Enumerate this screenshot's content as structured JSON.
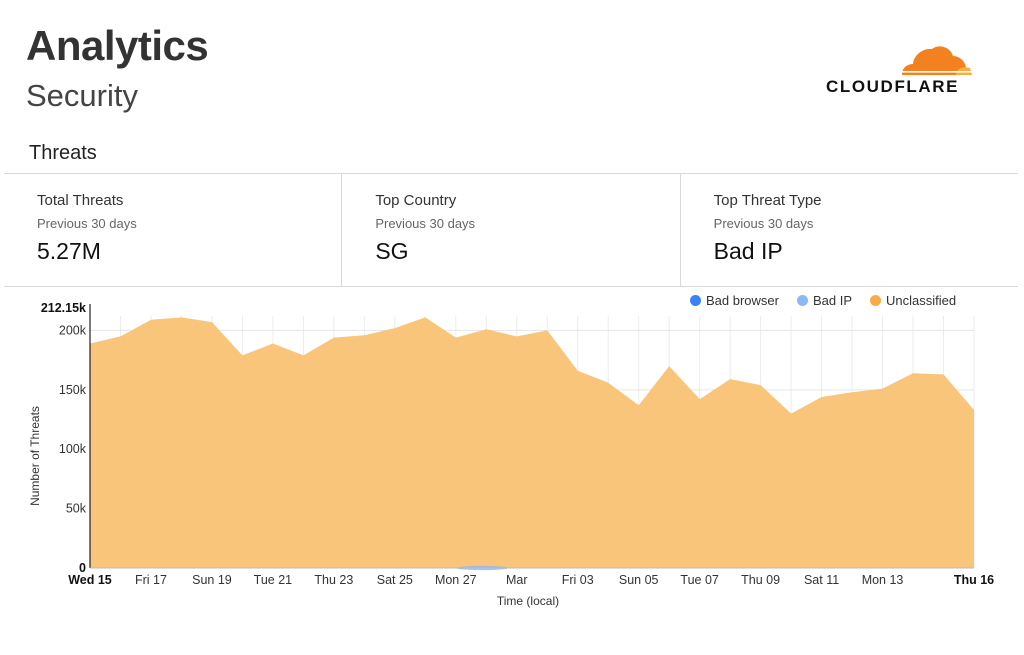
{
  "header": {
    "title": "Analytics",
    "subtitle": "Security",
    "logo_text": "CLOUDFLARE"
  },
  "section_title": "Threats",
  "cards": [
    {
      "label": "Total Threats",
      "period": "Previous 30 days",
      "value": "5.27M"
    },
    {
      "label": "Top Country",
      "period": "Previous 30 days",
      "value": "SG"
    },
    {
      "label": "Top Threat Type",
      "period": "Previous 30 days",
      "value": "Bad IP"
    }
  ],
  "colors": {
    "bad_browser": "#3b82f6",
    "bad_ip": "#8cb8f5",
    "unclassified": "#f6ad49",
    "area_fill": "#f9c57b",
    "logo_orange": "#f48120",
    "logo_light": "#faad3f"
  },
  "chart_data": {
    "type": "area",
    "ylabel": "Number of Threats",
    "xlabel": "Time (local)",
    "ylim": [
      0,
      212150
    ],
    "y_max_label": "212.15k",
    "y_ticks": [
      {
        "v": 0,
        "label": "0"
      },
      {
        "v": 50000,
        "label": "50k"
      },
      {
        "v": 100000,
        "label": "100k"
      },
      {
        "v": 150000,
        "label": "150k"
      },
      {
        "v": 200000,
        "label": "200k"
      }
    ],
    "x_ticks": [
      {
        "i": 0,
        "label": "Wed 15",
        "bold": true
      },
      {
        "i": 2,
        "label": "Fri 17",
        "bold": false
      },
      {
        "i": 4,
        "label": "Sun 19",
        "bold": false
      },
      {
        "i": 6,
        "label": "Tue 21",
        "bold": false
      },
      {
        "i": 8,
        "label": "Thu 23",
        "bold": false
      },
      {
        "i": 10,
        "label": "Sat 25",
        "bold": false
      },
      {
        "i": 12,
        "label": "Mon 27",
        "bold": false
      },
      {
        "i": 14,
        "label": "Mar",
        "bold": false
      },
      {
        "i": 16,
        "label": "Fri 03",
        "bold": false
      },
      {
        "i": 18,
        "label": "Sun 05",
        "bold": false
      },
      {
        "i": 20,
        "label": "Tue 07",
        "bold": false
      },
      {
        "i": 22,
        "label": "Thu 09",
        "bold": false
      },
      {
        "i": 24,
        "label": "Sat 11",
        "bold": false
      },
      {
        "i": 26,
        "label": "Mon 13",
        "bold": false
      },
      {
        "i": 29,
        "label": "Thu 16",
        "bold": true
      }
    ],
    "legend_position": "top-right",
    "grid": true,
    "series": [
      {
        "name": "Bad browser",
        "values": [
          0,
          0,
          0,
          0,
          0,
          0,
          0,
          0,
          0,
          0,
          0,
          0,
          0,
          0,
          0,
          0,
          0,
          0,
          0,
          0,
          0,
          0,
          0,
          0,
          0,
          0,
          0,
          0,
          0,
          0
        ]
      },
      {
        "name": "Bad IP",
        "values": [
          0,
          0,
          0,
          0,
          0,
          0,
          0,
          0,
          0,
          0,
          0,
          0,
          0,
          1000,
          0,
          0,
          0,
          0,
          0,
          0,
          0,
          0,
          0,
          0,
          0,
          0,
          0,
          0,
          0,
          0
        ]
      },
      {
        "name": "Unclassified",
        "values": [
          189000,
          195000,
          209000,
          211000,
          207000,
          179000,
          189000,
          179000,
          194000,
          196000,
          202000,
          211000,
          194000,
          201000,
          195000,
          200000,
          166000,
          156000,
          137000,
          170000,
          142000,
          159000,
          154000,
          130000,
          144000,
          148000,
          151000,
          164000,
          163000,
          133000
        ]
      }
    ]
  }
}
